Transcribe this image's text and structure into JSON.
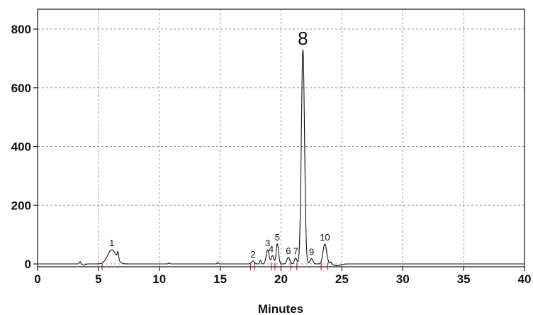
{
  "chart_data": {
    "type": "line",
    "title": "",
    "xlabel": "Minutes",
    "ylabel": "",
    "xlim": [
      0,
      40
    ],
    "ylim": [
      -60,
      860
    ],
    "xticks": [
      "0",
      "5",
      "10",
      "15",
      "20",
      "25",
      "30",
      "35",
      "40"
    ],
    "yticks": [
      "0",
      "200",
      "400",
      "600",
      "800"
    ],
    "grid": true,
    "colors": {
      "trace": "#111111",
      "marker": "#cc2a2a",
      "grid": "#9a9a9a"
    },
    "series": [
      {
        "baseline": 0,
        "peaks": [
          {
            "label": "1",
            "x": 6.1,
            "y": 48,
            "width": 0.35
          },
          {
            "label": "2",
            "x": 17.7,
            "y": 10,
            "width": 0.12
          },
          {
            "label": "3",
            "x": 18.9,
            "y": 48,
            "width": 0.12
          },
          {
            "label": "4",
            "x": 19.3,
            "y": 28,
            "width": 0.1
          },
          {
            "label": "5",
            "x": 19.7,
            "y": 68,
            "width": 0.1
          },
          {
            "label": "6",
            "x": 20.6,
            "y": 22,
            "width": 0.12
          },
          {
            "label": "7",
            "x": 21.2,
            "y": 20,
            "width": 0.1
          },
          {
            "label": "8",
            "x": 21.8,
            "y": 730,
            "width": 0.13
          },
          {
            "label": "9",
            "x": 22.5,
            "y": 18,
            "width": 0.12
          },
          {
            "label": "10",
            "x": 23.6,
            "y": 68,
            "width": 0.15
          }
        ],
        "minor_peaks": [
          {
            "x": 3.5,
            "y": 8
          },
          {
            "x": 6.6,
            "y": 25
          },
          {
            "x": 10.8,
            "y": 3
          },
          {
            "x": 14.8,
            "y": 5
          },
          {
            "x": 18.3,
            "y": 12
          },
          {
            "x": 24.1,
            "y": 8
          }
        ]
      }
    ],
    "integration_marks_x": [
      5.3,
      17.5,
      17.8,
      19.2,
      19.5,
      20.0,
      20.8,
      21.3,
      23.3,
      23.8
    ]
  }
}
